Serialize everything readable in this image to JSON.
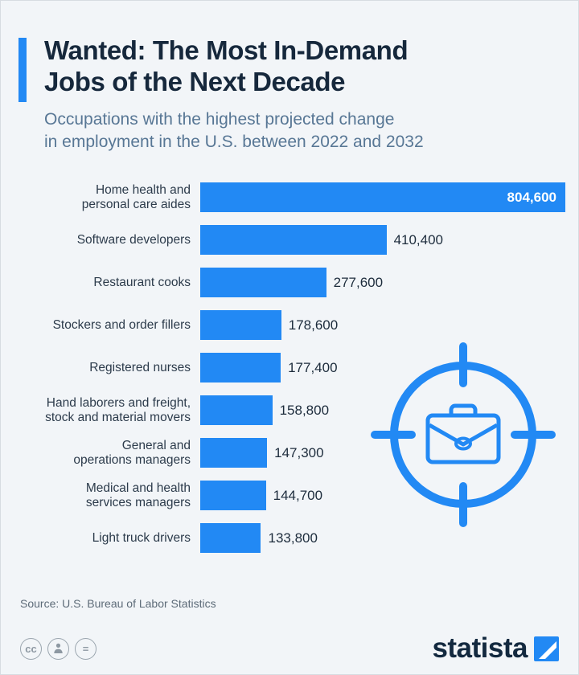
{
  "colors": {
    "accent": "#2289f4",
    "title": "#16283c",
    "subtitle": "#587795",
    "background": "#f2f5f8",
    "value_inside_text": "#ffffff"
  },
  "header": {
    "title": "Wanted: The Most In-Demand\nJobs of the Next Decade",
    "subtitle": "Occupations with the highest projected change\nin employment in the U.S. between 2022 and 2032"
  },
  "chart_data": {
    "type": "bar",
    "orientation": "horizontal",
    "title": "Wanted: The Most In-Demand Jobs of the Next Decade",
    "subtitle": "Occupations with the highest projected change in employment in the U.S. between 2022 and 2032",
    "categories": [
      "Home health and\npersonal care aides",
      "Software developers",
      "Restaurant cooks",
      "Stockers and order fillers",
      "Registered nurses",
      "Hand laborers and freight,\nstock and material movers",
      "General and\noperations managers",
      "Medical and health\nservices managers",
      "Light truck drivers"
    ],
    "values": [
      804600,
      410400,
      277600,
      178600,
      177400,
      158800,
      147300,
      144700,
      133800
    ],
    "value_labels": [
      "804,600",
      "410,400",
      "277,600",
      "178,600",
      "177,400",
      "158,800",
      "147,300",
      "144,700",
      "133,800"
    ],
    "xlim": [
      0,
      804600
    ],
    "xlabel": "",
    "ylabel": "",
    "grid": false,
    "legend": false,
    "bar_color": "#2289f4"
  },
  "decoration": {
    "icon": "target-briefcase-icon"
  },
  "footer": {
    "source": "Source: U.S. Bureau of Labor Statistics",
    "brand": "statista",
    "license": {
      "cc_label": "cc",
      "attribution_icon": "attribution-person-icon",
      "equal_label": "="
    }
  }
}
